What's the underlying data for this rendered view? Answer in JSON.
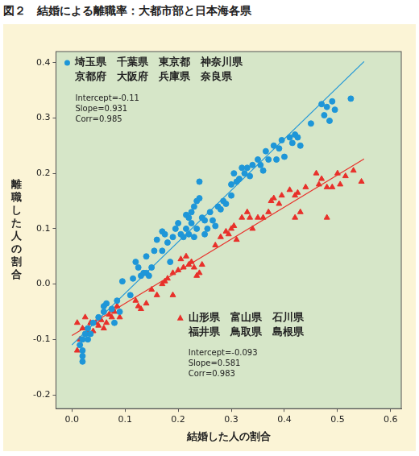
{
  "chart_data": {
    "type": "scatter",
    "title": "図２　結婚による離職率：大都市部と日本海各県",
    "x_label": "結婚した人の割合",
    "y_label": "離職した人の割合",
    "xlim": [
      -0.03,
      0.62
    ],
    "ylim": [
      -0.225,
      0.42
    ],
    "xticks": [
      {
        "value": 0,
        "label": "0.0"
      },
      0.1,
      0.2,
      0.3,
      0.4,
      0.5,
      0.6
    ],
    "yticks": [
      -0.2,
      -0.1,
      {
        "value": 0,
        "label": "0.0"
      },
      0.1,
      0.2,
      0.3,
      0.4
    ],
    "grid": false,
    "series": [
      {
        "name": [
          "埼玉県　千葉県　東京都　神奈川県",
          "京都府　大阪府　兵庫県　奈良県"
        ],
        "color": "#1e96d8",
        "marker": "circle",
        "stats": [
          "Intercept=-0.11",
          "Slope=0.931",
          "Corr=0.985"
        ],
        "trend": {
          "x": [
            0.0,
            0.55
          ],
          "values": [
            -0.11,
            0.402
          ]
        },
        "x": [
          0.02,
          0.02,
          0.02,
          0.015,
          0.02,
          0.025,
          0.03,
          0.03,
          0.035,
          0.04,
          0.05,
          0.06,
          0.06,
          0.065,
          0.075,
          0.08,
          0.085,
          0.09,
          0.095,
          0.11,
          0.115,
          0.12,
          0.125,
          0.13,
          0.135,
          0.14,
          0.14,
          0.145,
          0.15,
          0.155,
          0.16,
          0.17,
          0.17,
          0.175,
          0.18,
          0.185,
          0.19,
          0.195,
          0.2,
          0.205,
          0.21,
          0.215,
          0.215,
          0.22,
          0.22,
          0.225,
          0.225,
          0.23,
          0.23,
          0.235,
          0.235,
          0.24,
          0.24,
          0.245,
          0.25,
          0.25,
          0.255,
          0.26,
          0.265,
          0.27,
          0.275,
          0.28,
          0.285,
          0.29,
          0.3,
          0.3,
          0.305,
          0.31,
          0.315,
          0.32,
          0.325,
          0.33,
          0.335,
          0.34,
          0.35,
          0.355,
          0.36,
          0.365,
          0.37,
          0.38,
          0.385,
          0.39,
          0.395,
          0.4,
          0.41,
          0.415,
          0.42,
          0.425,
          0.43,
          0.45,
          0.47,
          0.475,
          0.48,
          0.485,
          0.49,
          0.495,
          0.525
        ],
        "values": [
          -0.14,
          -0.13,
          -0.12,
          -0.11,
          -0.1,
          -0.09,
          -0.1,
          -0.08,
          -0.09,
          -0.07,
          -0.06,
          -0.05,
          -0.04,
          -0.035,
          -0.045,
          -0.07,
          -0.03,
          -0.05,
          0.005,
          -0.02,
          0.01,
          0.04,
          0.03,
          0.015,
          0.02,
          0.02,
          0.05,
          0.015,
          0.03,
          0.06,
          0.08,
          0.06,
          0.095,
          0.09,
          0.075,
          0.04,
          0.085,
          0.1,
          0.11,
          0.09,
          0.085,
          0.1,
          0.125,
          0.09,
          0.12,
          0.13,
          0.11,
          0.14,
          0.085,
          0.15,
          0.1,
          0.155,
          0.185,
          0.12,
          0.115,
          0.09,
          0.1,
          0.13,
          0.115,
          0.105,
          0.14,
          0.135,
          0.15,
          0.145,
          0.16,
          0.18,
          0.2,
          0.185,
          0.19,
          0.21,
          0.2,
          0.21,
          0.195,
          0.215,
          0.225,
          0.215,
          0.205,
          0.24,
          0.225,
          0.25,
          0.225,
          0.245,
          0.26,
          0.23,
          0.265,
          0.255,
          0.27,
          0.265,
          0.25,
          0.29,
          0.325,
          0.305,
          0.32,
          0.295,
          0.33,
          0.315,
          0.335
        ]
      },
      {
        "name": [
          "山形県　富山県　石川県",
          "福井県　鳥取県　島根県"
        ],
        "color": "#e8302a",
        "marker": "triangle",
        "stats": [
          "Intercept=-0.093",
          "Slope=0.581",
          "Corr=0.983"
        ],
        "trend": {
          "x": [
            0.0,
            0.55
          ],
          "values": [
            -0.093,
            0.226
          ]
        },
        "x": [
          0.01,
          0.015,
          0.01,
          0.02,
          0.025,
          0.03,
          0.035,
          0.04,
          0.045,
          0.05,
          0.055,
          0.06,
          0.065,
          0.07,
          0.075,
          0.08,
          0.085,
          0.09,
          0.12,
          0.125,
          0.13,
          0.14,
          0.15,
          0.16,
          0.17,
          0.175,
          0.18,
          0.19,
          0.19,
          0.2,
          0.205,
          0.21,
          0.215,
          0.22,
          0.225,
          0.23,
          0.235,
          0.24,
          0.245,
          0.27,
          0.28,
          0.29,
          0.295,
          0.3,
          0.305,
          0.31,
          0.32,
          0.33,
          0.335,
          0.34,
          0.35,
          0.36,
          0.37,
          0.375,
          0.38,
          0.39,
          0.395,
          0.41,
          0.42,
          0.425,
          0.43,
          0.44,
          0.46,
          0.465,
          0.47,
          0.48,
          0.49,
          0.5,
          0.505,
          0.515,
          0.53,
          0.545,
          0.42,
          0.48
        ],
        "values": [
          -0.12,
          -0.1,
          -0.07,
          -0.08,
          -0.06,
          -0.09,
          -0.07,
          -0.085,
          -0.07,
          -0.075,
          -0.065,
          -0.08,
          -0.07,
          -0.055,
          -0.06,
          -0.05,
          -0.04,
          -0.06,
          -0.03,
          -0.04,
          -0.045,
          -0.035,
          -0.01,
          -0.02,
          0.0,
          0.005,
          0.01,
          -0.02,
          0.02,
          0.025,
          0.045,
          0.03,
          0.05,
          0.035,
          0.04,
          0.03,
          0.015,
          0.02,
          0.035,
          0.07,
          0.085,
          0.095,
          0.09,
          0.1,
          0.105,
          0.08,
          0.12,
          0.13,
          0.12,
          0.1,
          0.12,
          0.12,
          0.13,
          0.15,
          0.155,
          0.145,
          0.16,
          0.17,
          0.16,
          0.165,
          0.13,
          0.175,
          0.2,
          0.18,
          0.19,
          0.175,
          0.175,
          0.2,
          0.18,
          0.195,
          0.205,
          0.185,
          0.12,
          0.12
        ]
      }
    ]
  }
}
